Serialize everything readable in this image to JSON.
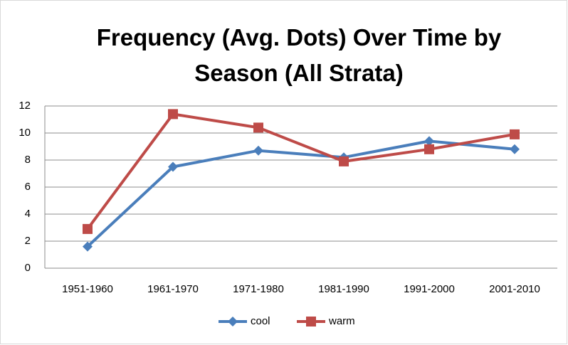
{
  "chart_data": {
    "type": "line",
    "title": "Frequency (Avg. Dots) Over Time by Season (All Strata)",
    "categories": [
      "1951-1960",
      "1961-1970",
      "1971-1980",
      "1981-1990",
      "1991-2000",
      "2001-2010"
    ],
    "series": [
      {
        "name": "cool",
        "color": "#4a7ebb",
        "marker": "diamond",
        "values": [
          1.6,
          7.5,
          8.7,
          8.2,
          9.4,
          8.8
        ]
      },
      {
        "name": "warm",
        "color": "#be4b48",
        "marker": "square",
        "values": [
          2.9,
          11.4,
          10.4,
          7.9,
          8.8,
          9.9
        ]
      }
    ],
    "ylim": [
      0,
      12
    ],
    "yticks": [
      0,
      2,
      4,
      6,
      8,
      10,
      12
    ],
    "grid": true,
    "legend": "bottom"
  }
}
